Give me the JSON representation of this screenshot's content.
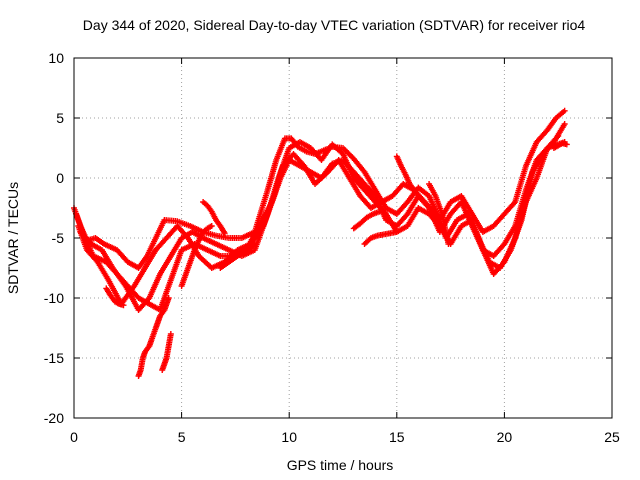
{
  "chart_data": {
    "type": "scatter",
    "title": "Day 344 of 2020, Sidereal Day-to-day VTEC variation (SDTVAR) for receiver rio4",
    "xlabel": "GPS time / hours",
    "ylabel": "SDTVAR / TECUs",
    "xlim": [
      0,
      25
    ],
    "ylim": [
      -20,
      10
    ],
    "xticks": [
      0,
      5,
      10,
      15,
      20,
      25
    ],
    "yticks": [
      -20,
      -15,
      -10,
      -5,
      0,
      5,
      10
    ],
    "grid": true,
    "marker": "+",
    "color": "#ff0000",
    "series": [
      {
        "x": [
          0,
          0.3,
          0.6,
          1.0,
          1.4,
          2.0,
          2.5,
          3.0,
          3.4,
          3.8,
          4.2,
          4.8,
          5.4,
          6.0,
          6.6,
          7.2,
          7.8,
          8.4,
          9.0,
          9.4,
          9.8,
          10.1,
          10.4,
          10.8,
          11.2,
          11.6,
          12.0,
          12.5,
          13.0,
          13.5,
          14.0,
          14.5,
          15.0,
          15.5,
          16.0,
          16.5,
          17.0,
          17.5,
          18.0,
          18.5,
          19.0,
          19.5,
          20.0,
          20.5,
          21.0,
          21.5,
          22.0,
          22.4,
          22.8
        ],
        "y": [
          -2.5,
          -4.0,
          -5.2,
          -5.0,
          -5.5,
          -6.0,
          -7.0,
          -7.5,
          -6.5,
          -5.0,
          -3.5,
          -3.6,
          -4.0,
          -4.5,
          -4.8,
          -5.0,
          -5.0,
          -4.5,
          -1.0,
          1.5,
          3.3,
          3.3,
          2.6,
          2.2,
          2.0,
          2.3,
          2.6,
          2.5,
          1.6,
          0.5,
          -1.0,
          -2.5,
          -3.0,
          -2.0,
          -0.8,
          -1.5,
          -3.5,
          -2.0,
          -1.5,
          -3.0,
          -4.5,
          -4.0,
          -3.0,
          -2.0,
          1.0,
          3.0,
          4.0,
          5.0,
          5.6
        ]
      },
      {
        "x": [
          0.1,
          0.5,
          0.9,
          1.5,
          2.0,
          2.5,
          3.0,
          3.5,
          4.0,
          4.4,
          5.0,
          5.6,
          6.2,
          6.8,
          7.4,
          8.0,
          8.6,
          9.2,
          9.6,
          10.0,
          10.5,
          11.0,
          11.5,
          12.0,
          12.5,
          13.0,
          13.5,
          14.0,
          14.5,
          15.0,
          15.5,
          16.0,
          16.5,
          17.0,
          17.5,
          18.0,
          18.5,
          19.0,
          19.5,
          20.0,
          20.5,
          21.0,
          21.5,
          22.0,
          22.8
        ],
        "y": [
          -3.0,
          -5.0,
          -6.5,
          -7.0,
          -8.0,
          -9.0,
          -10.0,
          -10.5,
          -11.0,
          -9.0,
          -6.0,
          -5.5,
          -6.0,
          -6.5,
          -6.5,
          -6.0,
          -4.0,
          -2.0,
          0.0,
          1.5,
          1.0,
          0.5,
          0.0,
          1.2,
          1.5,
          0.5,
          -0.5,
          -1.5,
          -3.5,
          -4.0,
          -3.0,
          -1.5,
          -2.5,
          -4.5,
          -3.0,
          -2.0,
          -4.0,
          -6.0,
          -6.5,
          -5.5,
          -4.0,
          -1.0,
          1.5,
          2.5,
          3.0
        ]
      },
      {
        "x": [
          0.2,
          0.6,
          1.1,
          1.6,
          2.2,
          2.8,
          3.3,
          3.8,
          4.3,
          4.8,
          5.3,
          5.8,
          6.4,
          7.0,
          7.6,
          8.2,
          8.8,
          9.3,
          9.7,
          10.2,
          10.7,
          11.2,
          11.8,
          12.3,
          12.8,
          13.3,
          13.8,
          14.3,
          14.8,
          15.3,
          15.8,
          16.3,
          16.8,
          17.3,
          17.8,
          18.3,
          18.8,
          19.3,
          19.8,
          20.3,
          20.8,
          21.3,
          21.8,
          22.3,
          22.8
        ],
        "y": [
          -4.0,
          -6.0,
          -7.0,
          -8.5,
          -10.5,
          -9.0,
          -7.5,
          -6.0,
          -5.0,
          -4.0,
          -5.0,
          -6.5,
          -7.5,
          -7.0,
          -6.0,
          -5.5,
          -4.0,
          -1.5,
          1.0,
          2.0,
          1.0,
          -0.5,
          0.5,
          1.5,
          0.0,
          -1.5,
          -2.5,
          -2.0,
          -1.5,
          -0.5,
          -1.0,
          -2.0,
          -3.0,
          -5.0,
          -3.5,
          -3.0,
          -5.0,
          -7.0,
          -7.5,
          -6.0,
          -3.5,
          0.5,
          2.0,
          3.0,
          4.5
        ]
      },
      {
        "x": [
          0.3,
          0.8,
          1.3,
          1.8,
          2.4,
          3.0,
          3.5,
          4.0,
          4.5,
          5.0,
          5.5,
          6.0,
          6.6,
          7.2,
          7.8,
          8.4,
          9.0,
          9.5,
          10.0,
          10.5,
          11.0,
          11.5,
          12.0,
          12.5,
          13.0,
          13.5,
          14.0,
          14.5,
          15.0,
          15.5,
          16.0,
          16.5,
          17.0,
          17.5,
          18.0,
          18.5,
          19.0,
          19.5,
          20.0,
          20.5,
          21.0,
          21.5,
          22.0,
          22.5
        ],
        "y": [
          -4.5,
          -5.5,
          -6.0,
          -7.5,
          -9.0,
          -11.0,
          -10.0,
          -8.0,
          -6.5,
          -5.0,
          -4.5,
          -5.0,
          -5.5,
          -6.0,
          -6.5,
          -6.0,
          -3.0,
          0.0,
          2.5,
          3.0,
          2.5,
          1.5,
          2.8,
          2.0,
          0.0,
          -1.0,
          -2.0,
          -3.0,
          -4.5,
          -4.0,
          -2.5,
          -3.0,
          -4.0,
          -5.5,
          -4.0,
          -3.5,
          -6.0,
          -8.0,
          -7.0,
          -5.0,
          -2.0,
          0.0,
          2.5,
          3.5
        ]
      },
      {
        "x": [
          1.5,
          1.7,
          1.9,
          2.1,
          2.3
        ],
        "y": [
          -9.2,
          -9.8,
          -10.3,
          -10.5,
          -10.6
        ]
      },
      {
        "x": [
          3.0,
          3.1,
          3.2,
          3.3,
          3.5,
          3.6,
          3.8,
          3.9,
          4.0,
          4.2,
          4.3,
          4.4
        ],
        "y": [
          -16.5,
          -16.0,
          -15.0,
          -14.5,
          -14.0,
          -13.5,
          -12.5,
          -12.0,
          -11.5,
          -11.0,
          -10.5,
          -10.0
        ]
      },
      {
        "x": [
          4.1,
          4.2,
          4.3,
          4.4,
          4.5
        ],
        "y": [
          -16.0,
          -15.5,
          -15.0,
          -14.0,
          -13.0
        ]
      },
      {
        "x": [
          5.0,
          5.2,
          5.4,
          5.6,
          5.8,
          6.0,
          6.2,
          6.4
        ],
        "y": [
          -9.0,
          -8.0,
          -7.0,
          -6.0,
          -5.2,
          -4.5,
          -4.2,
          -4.0
        ]
      },
      {
        "x": [
          6.0,
          6.2,
          6.4,
          6.6,
          6.8,
          7.0
        ],
        "y": [
          -2.0,
          -2.3,
          -2.8,
          -3.5,
          -4.0,
          -4.6
        ]
      },
      {
        "x": [
          6.8,
          7.2,
          7.6,
          8.0,
          8.4
        ],
        "y": [
          -7.5,
          -7.0,
          -6.5,
          -6.0,
          -5.5
        ]
      },
      {
        "x": [
          13.0,
          13.3,
          13.6,
          13.9,
          14.2
        ],
        "y": [
          -4.2,
          -3.8,
          -3.3,
          -3.0,
          -2.8
        ]
      },
      {
        "x": [
          13.5,
          13.8,
          14.1,
          14.4,
          14.7,
          15.0
        ],
        "y": [
          -5.5,
          -5.0,
          -4.8,
          -4.7,
          -4.6,
          -4.5
        ]
      },
      {
        "x": [
          15.0,
          15.2,
          15.4,
          15.6,
          15.8
        ],
        "y": [
          1.8,
          1.0,
          0.3,
          -0.5,
          -1.0
        ]
      },
      {
        "x": [
          16.5,
          16.8,
          17.1,
          17.4
        ],
        "y": [
          -0.5,
          -1.5,
          -3.0,
          -5.5
        ]
      },
      {
        "x": [
          22.3,
          22.5,
          22.7,
          22.9
        ],
        "y": [
          2.5,
          2.7,
          2.9,
          2.8
        ]
      }
    ]
  }
}
